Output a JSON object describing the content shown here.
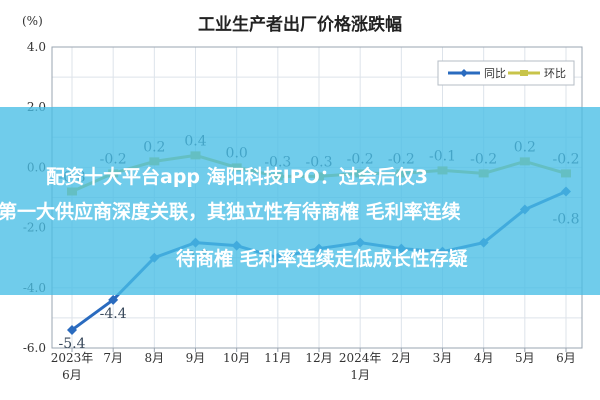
{
  "chart_data": {
    "type": "line",
    "title": "工业生产者出厂价格涨跌幅",
    "ylabel": "(%)",
    "ylim": [
      -6.0,
      4.0
    ],
    "yticks": [
      "4.0",
      "2.0",
      "0.0",
      "-2.0",
      "-4.0",
      "-6.0"
    ],
    "categories": [
      "2023年",
      "7月",
      "8月",
      "9月",
      "10月",
      "11月",
      "12月",
      "2024年",
      "2月",
      "3月",
      "4月",
      "5月",
      "6月"
    ],
    "category_sublabels": [
      "6月",
      "",
      "",
      "",
      "",
      "",
      "",
      "1月",
      "",
      "",
      "",
      "",
      ""
    ],
    "grid": true,
    "legend_position": "top-right",
    "series": [
      {
        "name": "同比",
        "color": "#2a6bbf",
        "values": [
          -5.4,
          -4.4,
          -3.0,
          -2.5,
          -2.6,
          -3.0,
          -2.7,
          -2.5,
          -2.7,
          -2.8,
          -2.5,
          -1.4,
          -0.8
        ],
        "labels": [
          "-5.4",
          "-4.4",
          "",
          "-2.5",
          "",
          "",
          "",
          "",
          "",
          "",
          "",
          "",
          "-0.8"
        ]
      },
      {
        "name": "环比",
        "color": "#c8c44a",
        "values": [
          -0.8,
          -0.2,
          0.2,
          0.4,
          0.0,
          -0.3,
          -0.3,
          -0.2,
          -0.2,
          -0.1,
          -0.2,
          0.2,
          -0.2
        ],
        "labels": [
          "-0.8",
          "-0.2",
          "0.2",
          "0.4",
          "0.0",
          "-0.3",
          "-0.3",
          "-0.2",
          "-0.2",
          "-0.1",
          "-0.2",
          "0.2",
          "-0.2"
        ]
      }
    ]
  },
  "overlay": {
    "line1": "配资十大平台app 海阳科技IPO：过会后仅3",
    "line2": "第一大供应商深度关联，其独立性有待商榷 毛利率连续",
    "line3": "待商榷 毛利率连续走低成长性存疑"
  }
}
